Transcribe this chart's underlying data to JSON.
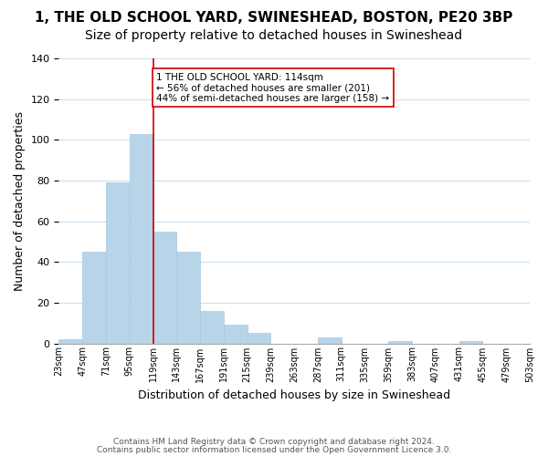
{
  "title": "1, THE OLD SCHOOL YARD, SWINESHEAD, BOSTON, PE20 3BP",
  "subtitle": "Size of property relative to detached houses in Swineshead",
  "xlabel": "Distribution of detached houses by size in Swineshead",
  "ylabel": "Number of detached properties",
  "bin_labels": [
    "23sqm",
    "47sqm",
    "71sqm",
    "95sqm",
    "119sqm",
    "143sqm",
    "167sqm",
    "191sqm",
    "215sqm",
    "239sqm",
    "263sqm",
    "287sqm",
    "311sqm",
    "335sqm",
    "359sqm",
    "383sqm",
    "407sqm",
    "431sqm",
    "455sqm",
    "479sqm",
    "503sqm"
  ],
  "bar_values": [
    2,
    45,
    79,
    103,
    55,
    45,
    16,
    9,
    5,
    0,
    0,
    3,
    0,
    0,
    1,
    0,
    0,
    1,
    0,
    0
  ],
  "bar_color": "#b8d4e8",
  "bar_edge_color": "#aac8e0",
  "ylim": [
    0,
    140
  ],
  "yticks": [
    0,
    20,
    40,
    60,
    80,
    100,
    120,
    140
  ],
  "vline_x": 4,
  "vline_color": "#cc0000",
  "annotation_line1": "1 THE OLD SCHOOL YARD: 114sqm",
  "annotation_line2": "← 56% of detached houses are smaller (201)",
  "annotation_line3": "44% of semi-detached houses are larger (158) →",
  "annotation_box_color": "#ffffff",
  "annotation_box_edge_color": "#cc0000",
  "footer_line1": "Contains HM Land Registry data © Crown copyright and database right 2024.",
  "footer_line2": "Contains public sector information licensed under the Open Government Licence 3.0.",
  "background_color": "#ffffff",
  "grid_color": "#cce0f0",
  "title_fontsize": 11,
  "subtitle_fontsize": 10,
  "axis_label_fontsize": 9,
  "tick_fontsize": 7,
  "footer_fontsize": 6.5
}
